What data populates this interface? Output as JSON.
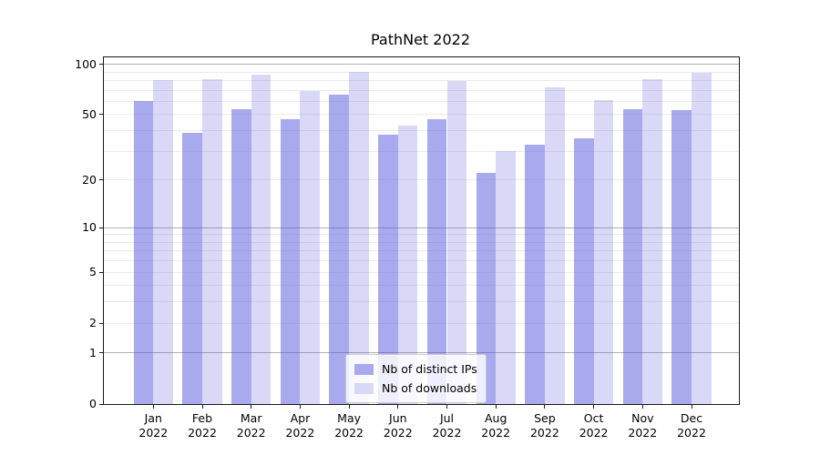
{
  "chart_data": {
    "type": "bar",
    "title": "PathNet 2022",
    "categories": [
      "Jan 2022",
      "Feb 2022",
      "Mar 2022",
      "Apr 2022",
      "May 2022",
      "Jun 2022",
      "Jul 2022",
      "Aug 2022",
      "Sep 2022",
      "Oct 2022",
      "Nov 2022",
      "Dec 2022"
    ],
    "x_tick_month_lines": [
      "Jan",
      "Feb",
      "Mar",
      "Apr",
      "May",
      "Jun",
      "Jul",
      "Aug",
      "Sep",
      "Oct",
      "Nov",
      "Dec"
    ],
    "x_tick_year_line": "2022",
    "series": [
      {
        "name": "Nb of distinct IPs",
        "values": [
          60,
          39,
          54,
          47,
          66,
          38,
          47,
          22,
          33,
          36,
          54,
          53
        ],
        "bar_color": "rgba(80,80,220,0.49)",
        "legend_swatch_color": "#a9a9ee"
      },
      {
        "name": "Nb of downloads",
        "values": [
          80,
          82,
          87,
          69,
          90,
          43,
          79,
          30,
          73,
          61,
          82,
          89
        ],
        "bar_color": "rgba(80,80,220,0.22)",
        "legend_swatch_color": "#d8d8f7"
      }
    ],
    "yscale": "log1p",
    "ylim": [
      0,
      110
    ],
    "y_tick_values": [
      0,
      1,
      2,
      5,
      10,
      20,
      50,
      100
    ],
    "y_tick_labels": [
      "0",
      "1",
      "2",
      "5",
      "10",
      "20",
      "50",
      "100"
    ],
    "y_major_gridlines": [
      1,
      10,
      100
    ],
    "y_minor_gridlines": [
      2,
      3,
      4,
      5,
      6,
      7,
      8,
      9,
      20,
      30,
      40,
      50,
      60,
      70,
      80,
      90
    ],
    "grid": true,
    "legend_position": "lower center"
  }
}
